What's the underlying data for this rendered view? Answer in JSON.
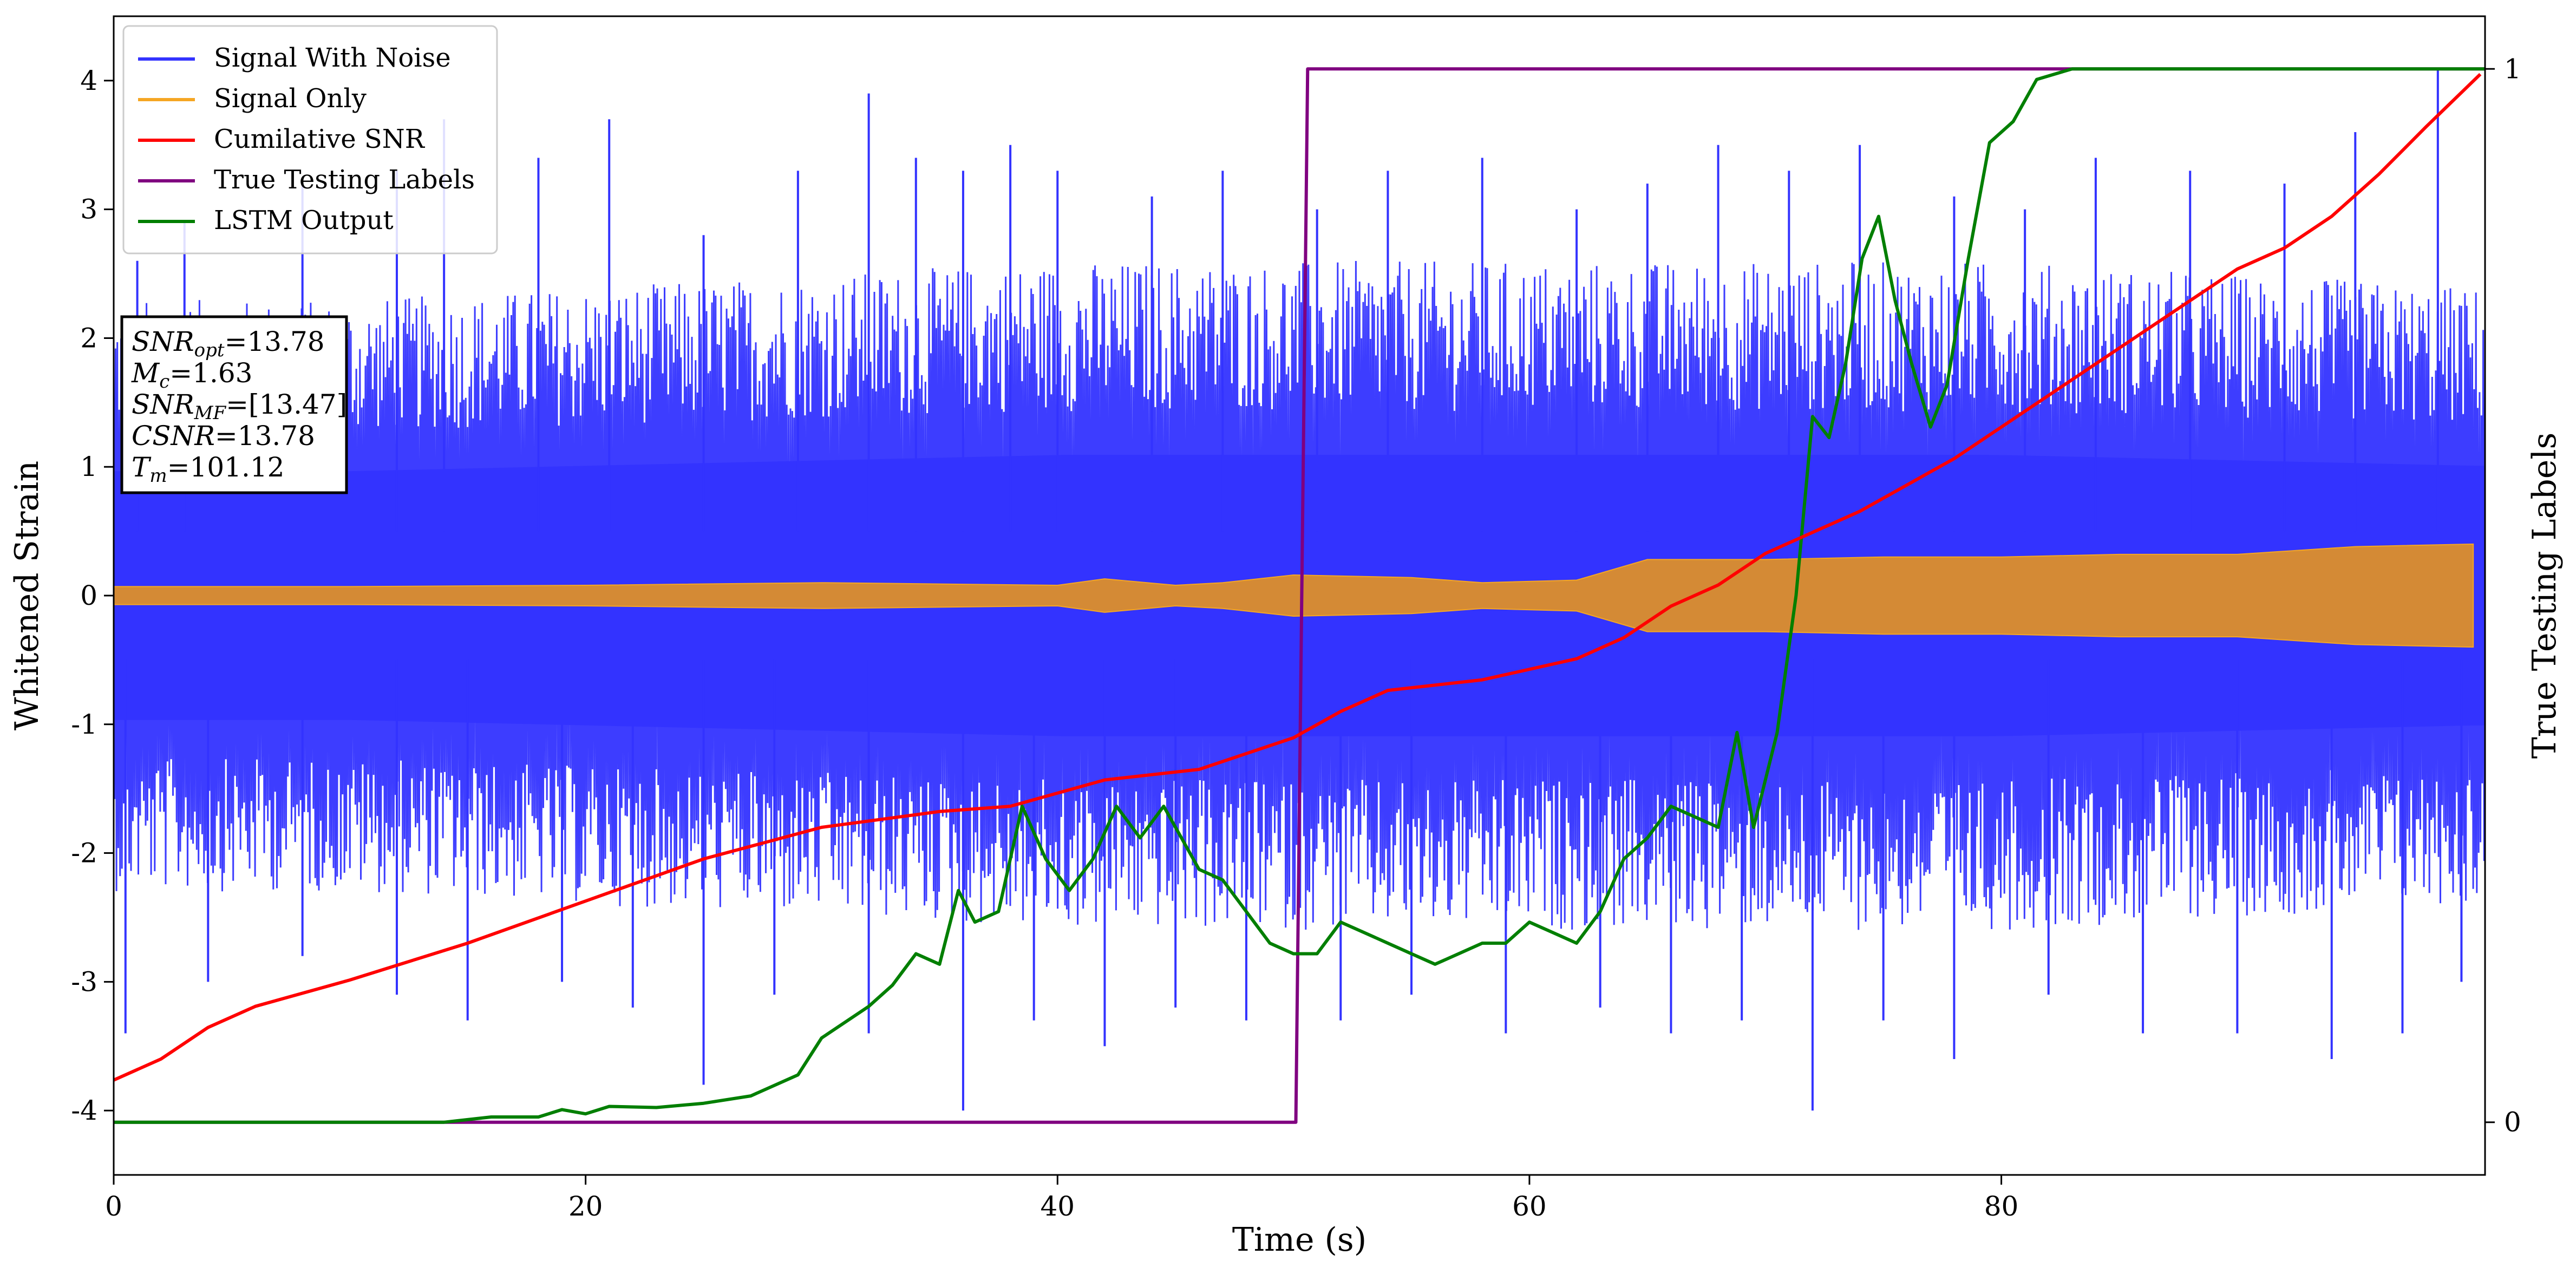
{
  "chart_data": {
    "type": "line",
    "title": "",
    "xlabel": "Time (s)",
    "ylabel": "Whitened Strain",
    "y2label": "True Testing Labels",
    "xlim": [
      0,
      100.5
    ],
    "ylim": [
      -4.5,
      4.5
    ],
    "y2lim": [
      -0.05,
      1.05
    ],
    "x_ticks": [
      0,
      20,
      40,
      60,
      80
    ],
    "y_ticks": [
      -4,
      -3,
      -2,
      -1,
      0,
      1,
      2,
      3,
      4
    ],
    "y2_ticks": [
      0,
      1
    ],
    "grid": false,
    "legend_position": "top-left",
    "legend": [
      {
        "name": "Signal With Noise",
        "color": "#3333ff"
      },
      {
        "name": "Signal Only",
        "color": "#f5a623"
      },
      {
        "name": "Cumilative SNR",
        "color": "#ff0000"
      },
      {
        "name": "True Testing Labels",
        "color": "#800080"
      },
      {
        "name": "LSTM Output",
        "color": "#007f00"
      }
    ],
    "annotation": {
      "lines": [
        {
          "base": "SNR",
          "sub": "opt",
          "value": "=13.78"
        },
        {
          "base": "M",
          "sub": "c",
          "value": "=1.63"
        },
        {
          "base": "SNR",
          "sub": "MF",
          "value": "=[13.47]"
        },
        {
          "base": "CSNR",
          "sub": "",
          "value": "=13.78"
        },
        {
          "base": "T",
          "sub": "m",
          "value": "=101.12"
        }
      ]
    },
    "series": [
      {
        "name": "Signal With Noise",
        "color": "#3333ff",
        "band_upper": [
          [
            0,
            2.3
          ],
          [
            10,
            2.3
          ],
          [
            20,
            2.4
          ],
          [
            30,
            2.5
          ],
          [
            40,
            2.6
          ],
          [
            50,
            2.6
          ],
          [
            60,
            2.6
          ],
          [
            70,
            2.6
          ],
          [
            80,
            2.6
          ],
          [
            90,
            2.5
          ],
          [
            100,
            2.4
          ]
        ],
        "band_lower": [
          [
            0,
            -2.3
          ],
          [
            10,
            -2.3
          ],
          [
            20,
            -2.4
          ],
          [
            30,
            -2.5
          ],
          [
            40,
            -2.6
          ],
          [
            50,
            -2.6
          ],
          [
            60,
            -2.6
          ],
          [
            70,
            -2.6
          ],
          [
            80,
            -2.6
          ],
          [
            90,
            -2.5
          ],
          [
            100,
            -2.4
          ]
        ],
        "peaks_up": [
          [
            1,
            2.6
          ],
          [
            3,
            2.9
          ],
          [
            8,
            3.2
          ],
          [
            12,
            3.3
          ],
          [
            14,
            3.7
          ],
          [
            18,
            3.4
          ],
          [
            21,
            3.7
          ],
          [
            25,
            2.8
          ],
          [
            29,
            3.3
          ],
          [
            32,
            3.9
          ],
          [
            34,
            3.4
          ],
          [
            36,
            3.3
          ],
          [
            38,
            3.5
          ],
          [
            40,
            3.3
          ],
          [
            44,
            3.1
          ],
          [
            47,
            3.3
          ],
          [
            51,
            3.0
          ],
          [
            54,
            3.3
          ],
          [
            58,
            3.4
          ],
          [
            62,
            3.0
          ],
          [
            65,
            3.2
          ],
          [
            68,
            3.5
          ],
          [
            71,
            3.3
          ],
          [
            74,
            3.5
          ],
          [
            78,
            3.1
          ],
          [
            81,
            3.0
          ],
          [
            84,
            3.4
          ],
          [
            88,
            3.3
          ],
          [
            92,
            3.2
          ],
          [
            95,
            3.6
          ],
          [
            98.5,
            4.1
          ]
        ],
        "peaks_down": [
          [
            0.5,
            -3.4
          ],
          [
            4,
            -3.0
          ],
          [
            8,
            -2.8
          ],
          [
            12,
            -3.1
          ],
          [
            15,
            -3.3
          ],
          [
            19,
            -3.0
          ],
          [
            22,
            -3.2
          ],
          [
            25,
            -3.8
          ],
          [
            28,
            -3.1
          ],
          [
            32,
            -3.4
          ],
          [
            36,
            -4.0
          ],
          [
            39,
            -3.3
          ],
          [
            42,
            -3.5
          ],
          [
            45,
            -3.2
          ],
          [
            48,
            -3.3
          ],
          [
            52,
            -3.3
          ],
          [
            55,
            -3.1
          ],
          [
            59,
            -3.4
          ],
          [
            63,
            -3.2
          ],
          [
            66,
            -3.4
          ],
          [
            69,
            -3.3
          ],
          [
            72,
            -4.0
          ],
          [
            75,
            -3.3
          ],
          [
            78,
            -3.6
          ],
          [
            82,
            -3.1
          ],
          [
            86,
            -3.4
          ],
          [
            90,
            -3.4
          ],
          [
            94,
            -3.6
          ],
          [
            97,
            -3.4
          ],
          [
            99.5,
            -3.0
          ]
        ]
      },
      {
        "name": "Signal Only",
        "color": "#f5a623",
        "fill_color": "#d48a35",
        "band_upper": [
          [
            0,
            0.07
          ],
          [
            10,
            0.07
          ],
          [
            20,
            0.08
          ],
          [
            30,
            0.1
          ],
          [
            35,
            0.09
          ],
          [
            40,
            0.08
          ],
          [
            42,
            0.13
          ],
          [
            45,
            0.08
          ],
          [
            47,
            0.1
          ],
          [
            50,
            0.16
          ],
          [
            55,
            0.14
          ],
          [
            58,
            0.1
          ],
          [
            62,
            0.12
          ],
          [
            65,
            0.28
          ],
          [
            70,
            0.28
          ],
          [
            75,
            0.3
          ],
          [
            80,
            0.3
          ],
          [
            85,
            0.32
          ],
          [
            90,
            0.32
          ],
          [
            95,
            0.38
          ],
          [
            100,
            0.4
          ]
        ],
        "band_lower": [
          [
            0,
            -0.07
          ],
          [
            10,
            -0.07
          ],
          [
            20,
            -0.08
          ],
          [
            30,
            -0.1
          ],
          [
            35,
            -0.09
          ],
          [
            40,
            -0.08
          ],
          [
            42,
            -0.13
          ],
          [
            45,
            -0.08
          ],
          [
            47,
            -0.1
          ],
          [
            50,
            -0.16
          ],
          [
            55,
            -0.14
          ],
          [
            58,
            -0.1
          ],
          [
            62,
            -0.12
          ],
          [
            65,
            -0.28
          ],
          [
            70,
            -0.28
          ],
          [
            75,
            -0.3
          ],
          [
            80,
            -0.3
          ],
          [
            85,
            -0.32
          ],
          [
            90,
            -0.32
          ],
          [
            95,
            -0.38
          ],
          [
            100,
            -0.4
          ]
        ]
      },
      {
        "name": "Cumilative SNR",
        "color": "#ff0000",
        "axis": "right",
        "points": [
          [
            0,
            0.04
          ],
          [
            2,
            0.06
          ],
          [
            4,
            0.09
          ],
          [
            6,
            0.11
          ],
          [
            10,
            0.135
          ],
          [
            15,
            0.17
          ],
          [
            20,
            0.21
          ],
          [
            25,
            0.25
          ],
          [
            30,
            0.28
          ],
          [
            35,
            0.295
          ],
          [
            38,
            0.3
          ],
          [
            42,
            0.325
          ],
          [
            46,
            0.335
          ],
          [
            50,
            0.365
          ],
          [
            52,
            0.39
          ],
          [
            54,
            0.41
          ],
          [
            58,
            0.42
          ],
          [
            62,
            0.44
          ],
          [
            64,
            0.46
          ],
          [
            66,
            0.49
          ],
          [
            68,
            0.51
          ],
          [
            70,
            0.54
          ],
          [
            72,
            0.56
          ],
          [
            74,
            0.58
          ],
          [
            76,
            0.605
          ],
          [
            78,
            0.63
          ],
          [
            80,
            0.66
          ],
          [
            82,
            0.69
          ],
          [
            84,
            0.72
          ],
          [
            86,
            0.75
          ],
          [
            88,
            0.78
          ],
          [
            90,
            0.81
          ],
          [
            92,
            0.83
          ],
          [
            94,
            0.86
          ],
          [
            96,
            0.9
          ],
          [
            98,
            0.945
          ],
          [
            100.3,
            0.995
          ]
        ]
      },
      {
        "name": "True Testing Labels",
        "color": "#800080",
        "axis": "right",
        "points": [
          [
            0,
            0
          ],
          [
            50.1,
            0
          ],
          [
            50.6,
            1
          ],
          [
            100.5,
            1
          ]
        ]
      },
      {
        "name": "LSTM Output",
        "color": "#007f00",
        "axis": "right",
        "points": [
          [
            0,
            0
          ],
          [
            14,
            0
          ],
          [
            16,
            0.005
          ],
          [
            18,
            0.005
          ],
          [
            19,
            0.012
          ],
          [
            20,
            0.008
          ],
          [
            21,
            0.015
          ],
          [
            23,
            0.014
          ],
          [
            25,
            0.018
          ],
          [
            27,
            0.025
          ],
          [
            29,
            0.045
          ],
          [
            30,
            0.08
          ],
          [
            32,
            0.11
          ],
          [
            33,
            0.13
          ],
          [
            34,
            0.16
          ],
          [
            35,
            0.15
          ],
          [
            35.8,
            0.22
          ],
          [
            36.5,
            0.19
          ],
          [
            37.5,
            0.2
          ],
          [
            38.5,
            0.3
          ],
          [
            39.5,
            0.25
          ],
          [
            40.5,
            0.22
          ],
          [
            41.5,
            0.25
          ],
          [
            42.5,
            0.3
          ],
          [
            43.5,
            0.27
          ],
          [
            44.5,
            0.3
          ],
          [
            46,
            0.24
          ],
          [
            47,
            0.23
          ],
          [
            48,
            0.2
          ],
          [
            49,
            0.17
          ],
          [
            50,
            0.16
          ],
          [
            51,
            0.16
          ],
          [
            52,
            0.19
          ],
          [
            53,
            0.18
          ],
          [
            54,
            0.17
          ],
          [
            55,
            0.16
          ],
          [
            56,
            0.15
          ],
          [
            57,
            0.16
          ],
          [
            58,
            0.17
          ],
          [
            59,
            0.17
          ],
          [
            60,
            0.19
          ],
          [
            61,
            0.18
          ],
          [
            62,
            0.17
          ],
          [
            63,
            0.2
          ],
          [
            64,
            0.25
          ],
          [
            65,
            0.27
          ],
          [
            66,
            0.3
          ],
          [
            67,
            0.29
          ],
          [
            68,
            0.28
          ],
          [
            68.8,
            0.37
          ],
          [
            69.5,
            0.28
          ],
          [
            70.5,
            0.37
          ],
          [
            71.3,
            0.5
          ],
          [
            72,
            0.67
          ],
          [
            72.7,
            0.65
          ],
          [
            73.4,
            0.72
          ],
          [
            74.1,
            0.82
          ],
          [
            74.8,
            0.86
          ],
          [
            75.5,
            0.78
          ],
          [
            76.2,
            0.72
          ],
          [
            77,
            0.66
          ],
          [
            77.7,
            0.7
          ],
          [
            78.6,
            0.82
          ],
          [
            79.5,
            0.93
          ],
          [
            80.5,
            0.95
          ],
          [
            81.5,
            0.99
          ],
          [
            83,
            1.0
          ],
          [
            90,
            1.0
          ],
          [
            100.5,
            1.0
          ]
        ]
      }
    ]
  }
}
